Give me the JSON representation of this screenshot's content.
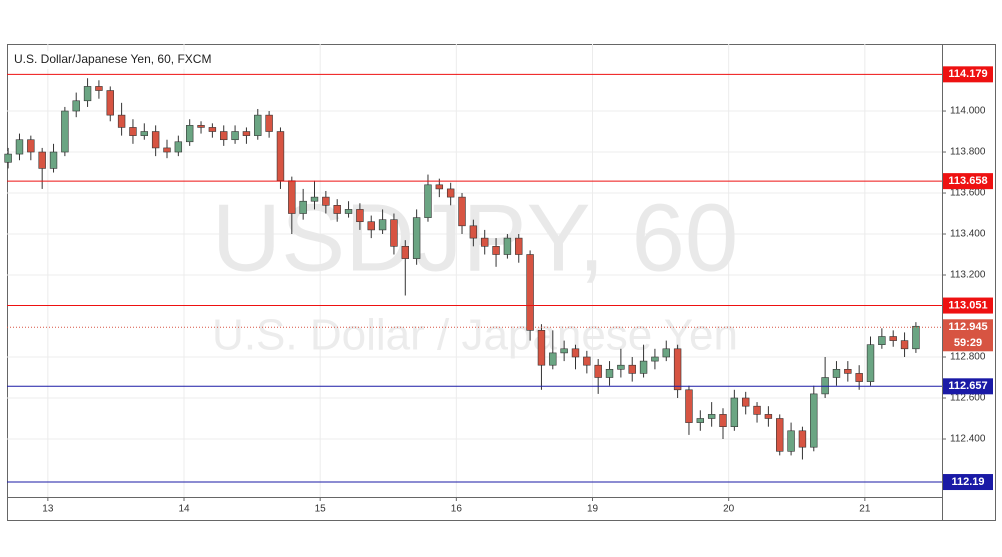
{
  "chart_data": {
    "type": "candlestick",
    "title": "U.S. Dollar/Japanese Yen, 60, FXCM",
    "watermark": "USDJPY, 60",
    "watermark_subtitle": "U.S. Dollar / Japanese Yen",
    "up_color": "#6ba583",
    "down_color": "#d75442",
    "wick_color": "#333333",
    "grid": true,
    "candles": [
      [
        113.75,
        113.82,
        113.72,
        113.79
      ],
      [
        113.79,
        113.89,
        113.76,
        113.86
      ],
      [
        113.86,
        113.88,
        113.76,
        113.8
      ],
      [
        113.8,
        113.82,
        113.62,
        113.72
      ],
      [
        113.72,
        113.84,
        113.7,
        113.8
      ],
      [
        113.8,
        114.02,
        113.78,
        114.0
      ],
      [
        114.0,
        114.09,
        113.97,
        114.05
      ],
      [
        114.05,
        114.16,
        114.02,
        114.12
      ],
      [
        114.12,
        114.15,
        114.06,
        114.1
      ],
      [
        114.1,
        114.12,
        113.95,
        113.98
      ],
      [
        113.98,
        114.04,
        113.88,
        113.92
      ],
      [
        113.92,
        113.96,
        113.84,
        113.88
      ],
      [
        113.88,
        113.94,
        113.86,
        113.9
      ],
      [
        113.9,
        113.93,
        113.78,
        113.82
      ],
      [
        113.82,
        113.86,
        113.77,
        113.8
      ],
      [
        113.8,
        113.88,
        113.78,
        113.85
      ],
      [
        113.85,
        113.96,
        113.83,
        113.93
      ],
      [
        113.93,
        113.95,
        113.89,
        113.92
      ],
      [
        113.92,
        113.94,
        113.87,
        113.9
      ],
      [
        113.9,
        113.93,
        113.83,
        113.86
      ],
      [
        113.86,
        113.93,
        113.84,
        113.9
      ],
      [
        113.9,
        113.92,
        113.84,
        113.88
      ],
      [
        113.88,
        114.01,
        113.86,
        113.98
      ],
      [
        113.98,
        114.0,
        113.87,
        113.9
      ],
      [
        113.9,
        113.92,
        113.62,
        113.66
      ],
      [
        113.66,
        113.68,
        113.4,
        113.5
      ],
      [
        113.5,
        113.62,
        113.47,
        113.56
      ],
      [
        113.56,
        113.66,
        113.52,
        113.58
      ],
      [
        113.58,
        113.61,
        113.5,
        113.54
      ],
      [
        113.54,
        113.57,
        113.46,
        113.5
      ],
      [
        113.5,
        113.56,
        113.48,
        113.52
      ],
      [
        113.52,
        113.55,
        113.42,
        113.46
      ],
      [
        113.46,
        113.49,
        113.38,
        113.42
      ],
      [
        113.42,
        113.52,
        113.4,
        113.47
      ],
      [
        113.47,
        113.5,
        113.3,
        113.34
      ],
      [
        113.34,
        113.37,
        113.1,
        113.28
      ],
      [
        113.28,
        113.52,
        113.25,
        113.48
      ],
      [
        113.48,
        113.69,
        113.46,
        113.64
      ],
      [
        113.64,
        113.67,
        113.58,
        113.62
      ],
      [
        113.62,
        113.65,
        113.54,
        113.58
      ],
      [
        113.58,
        113.6,
        113.4,
        113.44
      ],
      [
        113.44,
        113.47,
        113.34,
        113.38
      ],
      [
        113.38,
        113.42,
        113.3,
        113.34
      ],
      [
        113.34,
        113.38,
        113.24,
        113.3
      ],
      [
        113.3,
        113.4,
        113.28,
        113.38
      ],
      [
        113.38,
        113.4,
        113.26,
        113.3
      ],
      [
        113.3,
        113.32,
        112.88,
        112.93
      ],
      [
        112.93,
        112.96,
        112.64,
        112.76
      ],
      [
        112.76,
        112.93,
        112.74,
        112.82
      ],
      [
        112.82,
        112.88,
        112.78,
        112.84
      ],
      [
        112.84,
        112.86,
        112.74,
        112.8
      ],
      [
        112.8,
        112.83,
        112.72,
        112.76
      ],
      [
        112.76,
        112.79,
        112.62,
        112.7
      ],
      [
        112.7,
        112.78,
        112.66,
        112.74
      ],
      [
        112.74,
        112.84,
        112.7,
        112.76
      ],
      [
        112.76,
        112.8,
        112.68,
        112.72
      ],
      [
        112.72,
        112.86,
        112.7,
        112.78
      ],
      [
        112.78,
        112.84,
        112.74,
        112.8
      ],
      [
        112.8,
        112.88,
        112.78,
        112.84
      ],
      [
        112.84,
        112.86,
        112.6,
        112.64
      ],
      [
        112.64,
        112.66,
        112.42,
        112.48
      ],
      [
        112.48,
        112.54,
        112.44,
        112.5
      ],
      [
        112.5,
        112.58,
        112.46,
        112.52
      ],
      [
        112.52,
        112.55,
        112.4,
        112.46
      ],
      [
        112.46,
        112.64,
        112.44,
        112.6
      ],
      [
        112.6,
        112.63,
        112.52,
        112.56
      ],
      [
        112.56,
        112.58,
        112.48,
        112.52
      ],
      [
        112.52,
        112.56,
        112.46,
        112.5
      ],
      [
        112.5,
        112.52,
        112.32,
        112.34
      ],
      [
        112.34,
        112.48,
        112.32,
        112.44
      ],
      [
        112.44,
        112.46,
        112.3,
        112.36
      ],
      [
        112.36,
        112.66,
        112.34,
        112.62
      ],
      [
        112.62,
        112.8,
        112.6,
        112.7
      ],
      [
        112.7,
        112.78,
        112.66,
        112.74
      ],
      [
        112.74,
        112.78,
        112.68,
        112.72
      ],
      [
        112.72,
        112.76,
        112.64,
        112.68
      ],
      [
        112.68,
        112.9,
        112.66,
        112.86
      ],
      [
        112.86,
        112.94,
        112.84,
        112.9
      ],
      [
        112.9,
        112.93,
        112.85,
        112.88
      ],
      [
        112.88,
        112.92,
        112.8,
        112.84
      ],
      [
        112.84,
        112.97,
        112.82,
        112.95
      ]
    ],
    "xlim": [
      -0.1,
      82.3
    ],
    "xticks": [
      {
        "value": 3.5,
        "label": "13"
      },
      {
        "value": 15.5,
        "label": "14"
      },
      {
        "value": 27.5,
        "label": "15"
      },
      {
        "value": 39.5,
        "label": "16"
      },
      {
        "value": 51.5,
        "label": "19"
      },
      {
        "value": 63.5,
        "label": "20"
      },
      {
        "value": 75.5,
        "label": "21"
      }
    ],
    "ylim": [
      112.117,
      114.327
    ],
    "yticks": [
      {
        "value": 112.4,
        "label": "112.400"
      },
      {
        "value": 112.6,
        "label": "112.600"
      },
      {
        "value": 112.8,
        "label": "112.800"
      },
      {
        "value": 113.2,
        "label": "113.200"
      },
      {
        "value": 113.4,
        "label": "113.400"
      },
      {
        "value": 113.6,
        "label": "113.600"
      },
      {
        "value": 113.8,
        "label": "113.800"
      },
      {
        "value": 114,
        "label": "114.000"
      }
    ],
    "levels": [
      {
        "value": 114.179,
        "color": "#ee1111"
      },
      {
        "value": 113.658,
        "color": "#ee1111"
      },
      {
        "value": 113.051,
        "color": "#ee1111"
      },
      {
        "value": 112.657,
        "color": "#1a1aa6"
      },
      {
        "value": 112.19,
        "color": "#1a1aa6"
      }
    ],
    "last_price": {
      "value": 112.945,
      "color": "#d75442",
      "countdown": "59:29"
    }
  }
}
